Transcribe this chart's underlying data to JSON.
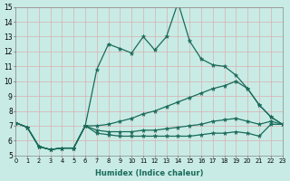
{
  "xlabel": "Humidex (Indice chaleur)",
  "xlim": [
    0,
    23
  ],
  "ylim": [
    5,
    15
  ],
  "xtick_labels": [
    "0",
    "1",
    "2",
    "3",
    "4",
    "5",
    "6",
    "7",
    "8",
    "9",
    "10",
    "11",
    "12",
    "13",
    "14",
    "15",
    "16",
    "17",
    "18",
    "19",
    "20",
    "21",
    "22",
    "23"
  ],
  "xtick_vals": [
    0,
    1,
    2,
    3,
    4,
    5,
    6,
    7,
    8,
    9,
    10,
    11,
    12,
    13,
    14,
    15,
    16,
    17,
    18,
    19,
    20,
    21,
    22,
    23
  ],
  "ytick_vals": [
    5,
    6,
    7,
    8,
    9,
    10,
    11,
    12,
    13,
    14,
    15
  ],
  "ytick_labels": [
    "5",
    "6",
    "7",
    "8",
    "9",
    "10",
    "11",
    "12",
    "13",
    "14",
    "15"
  ],
  "bg_color": "#c8ebe5",
  "line_color": "#1a6b5a",
  "grid_color": "#b0d8d0",
  "lines": [
    {
      "x": [
        0,
        1,
        2,
        3,
        4,
        5,
        6,
        7,
        8,
        9,
        10,
        11,
        12,
        13,
        14,
        15,
        16,
        17,
        18,
        19,
        20,
        21,
        22,
        23
      ],
      "y": [
        7.2,
        6.9,
        5.6,
        5.4,
        5.5,
        5.5,
        7.0,
        10.8,
        12.5,
        12.2,
        11.9,
        13.0,
        12.1,
        13.0,
        15.3,
        12.7,
        11.5,
        11.1,
        11.0,
        10.4,
        9.5,
        8.4,
        7.6,
        7.1
      ]
    },
    {
      "x": [
        0,
        1,
        2,
        3,
        4,
        5,
        6,
        7,
        8,
        9,
        10,
        11,
        12,
        13,
        14,
        15,
        16,
        17,
        18,
        19,
        20,
        21,
        22,
        23
      ],
      "y": [
        7.2,
        6.9,
        5.6,
        5.4,
        5.5,
        5.5,
        7.0,
        7.0,
        7.1,
        7.3,
        7.5,
        7.8,
        8.0,
        8.3,
        8.6,
        8.9,
        9.2,
        9.5,
        9.7,
        10.0,
        9.5,
        8.4,
        7.6,
        7.1
      ]
    },
    {
      "x": [
        0,
        1,
        2,
        3,
        4,
        5,
        6,
        7,
        8,
        9,
        10,
        11,
        12,
        13,
        14,
        15,
        16,
        17,
        18,
        19,
        20,
        21,
        22,
        23
      ],
      "y": [
        7.2,
        6.9,
        5.6,
        5.4,
        5.5,
        5.5,
        7.0,
        6.7,
        6.6,
        6.6,
        6.6,
        6.7,
        6.7,
        6.8,
        6.9,
        7.0,
        7.1,
        7.3,
        7.4,
        7.5,
        7.3,
        7.1,
        7.3,
        7.1
      ]
    },
    {
      "x": [
        0,
        1,
        2,
        3,
        4,
        5,
        6,
        7,
        8,
        9,
        10,
        11,
        12,
        13,
        14,
        15,
        16,
        17,
        18,
        19,
        20,
        21,
        22,
        23
      ],
      "y": [
        7.2,
        6.9,
        5.6,
        5.4,
        5.5,
        5.5,
        7.0,
        6.5,
        6.4,
        6.3,
        6.3,
        6.3,
        6.3,
        6.3,
        6.3,
        6.3,
        6.4,
        6.5,
        6.5,
        6.6,
        6.5,
        6.3,
        7.1,
        7.1
      ]
    }
  ]
}
